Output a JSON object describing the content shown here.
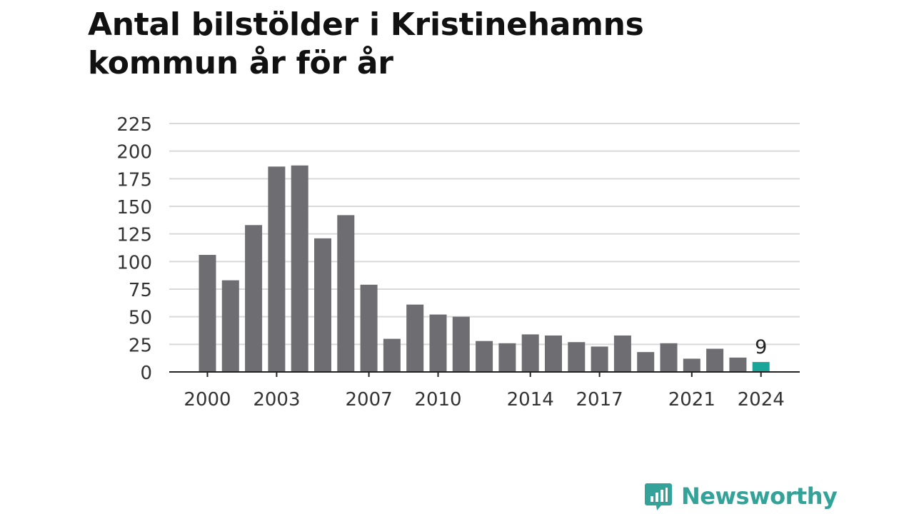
{
  "title_line1": "Antal bilstölder i Kristinehamns",
  "title_line2": "kommun år för år",
  "brand": "Newsworthy",
  "colors": {
    "bar": "#6e6d72",
    "highlight": "#1aa59b",
    "grid": "#d9d9d9",
    "axis": "#222222",
    "brand": "#33a39a"
  },
  "chart_data": {
    "type": "bar",
    "x": [
      2000,
      2001,
      2002,
      2003,
      2004,
      2005,
      2006,
      2007,
      2008,
      2009,
      2010,
      2011,
      2012,
      2013,
      2014,
      2015,
      2016,
      2017,
      2018,
      2019,
      2020,
      2021,
      2022,
      2023,
      2024
    ],
    "values": [
      106,
      83,
      133,
      186,
      187,
      121,
      142,
      79,
      30,
      61,
      52,
      50,
      28,
      26,
      34,
      33,
      27,
      23,
      33,
      18,
      26,
      12,
      21,
      13,
      9
    ],
    "highlight_index": 24,
    "highlight_label": "9",
    "x_tick_labels": [
      "2000",
      "2003",
      "2007",
      "2010",
      "2014",
      "2017",
      "2021",
      "2024"
    ],
    "y_ticks": [
      "0",
      "25",
      "50",
      "75",
      "100",
      "125",
      "150",
      "175",
      "200",
      "225"
    ],
    "ylim": [
      0,
      225
    ],
    "grid": true
  }
}
